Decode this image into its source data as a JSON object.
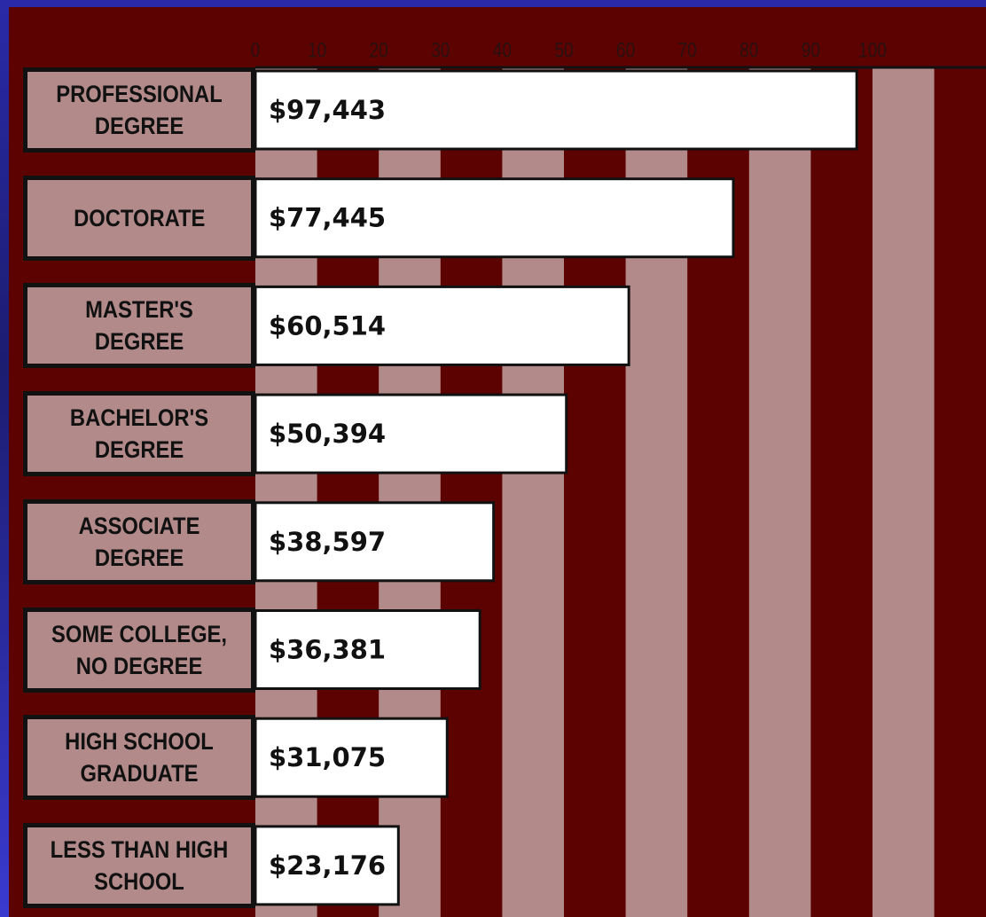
{
  "chart_data": {
    "type": "bar",
    "orientation": "horizontal",
    "categories": [
      "PROFESSIONAL DEGREE",
      "DOCTORATE",
      "MASTER'S DEGREE",
      "BACHELOR'S DEGREE",
      "ASSOCIATE DEGREE",
      "SOME COLLEGE, NO DEGREE",
      "HIGH SCHOOL GRADUATE",
      "LESS THAN HIGH SCHOOL"
    ],
    "values": [
      97.443,
      77.445,
      60.514,
      50.394,
      38.597,
      36.381,
      31.075,
      23.176
    ],
    "value_labels": [
      "$97,443",
      "$77,445",
      "$60,514",
      "$50,394",
      "$38,597",
      "$36,381",
      "$31,075",
      "$23,176"
    ],
    "color": "#ffffff",
    "band_color": "#b38a8a",
    "xlim": [
      0,
      100
    ],
    "xticks": [
      0,
      10,
      20,
      30,
      40,
      50,
      60,
      70,
      80,
      90,
      100
    ],
    "grid": true
  }
}
